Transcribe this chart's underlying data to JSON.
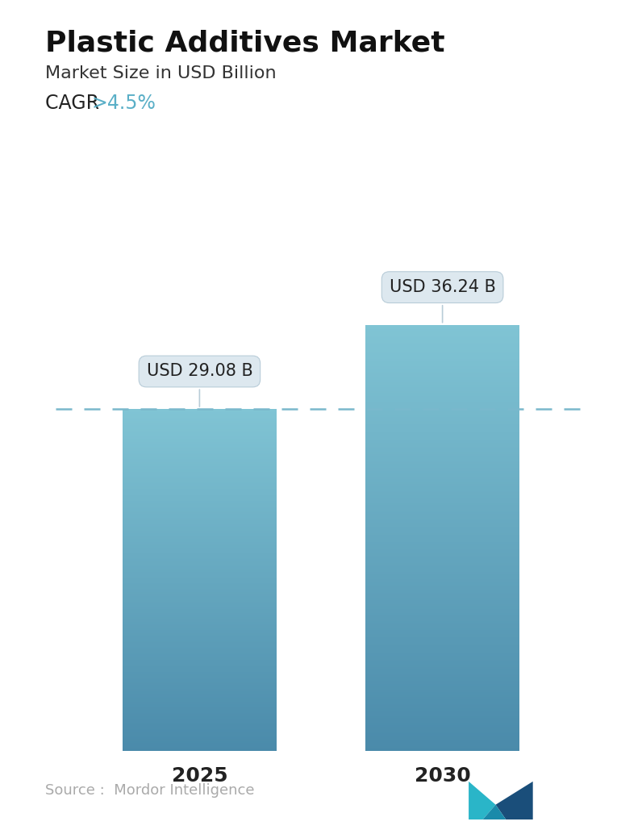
{
  "title": "Plastic Additives Market",
  "subtitle": "Market Size in USD Billion",
  "cagr_label": "CAGR ",
  "cagr_value": ">4.5%",
  "cagr_color": "#5aafc7",
  "years": [
    "2025",
    "2030"
  ],
  "values": [
    29.08,
    36.24
  ],
  "bar_labels": [
    "USD 29.08 B",
    "USD 36.24 B"
  ],
  "bar_top_color": "#80c4d4",
  "bar_bottom_color": "#4a8aaa",
  "dashed_line_color": "#7ab8cc",
  "dashed_line_value": 29.08,
  "source_text": "Source :  Mordor Intelligence",
  "source_color": "#aaaaaa",
  "background_color": "#ffffff",
  "title_fontsize": 26,
  "subtitle_fontsize": 16,
  "cagr_fontsize": 17,
  "bar_label_fontsize": 15,
  "xtick_fontsize": 18,
  "source_fontsize": 13,
  "ylim": [
    0,
    44
  ],
  "bar_width": 0.28,
  "positions": [
    0.28,
    0.72
  ]
}
